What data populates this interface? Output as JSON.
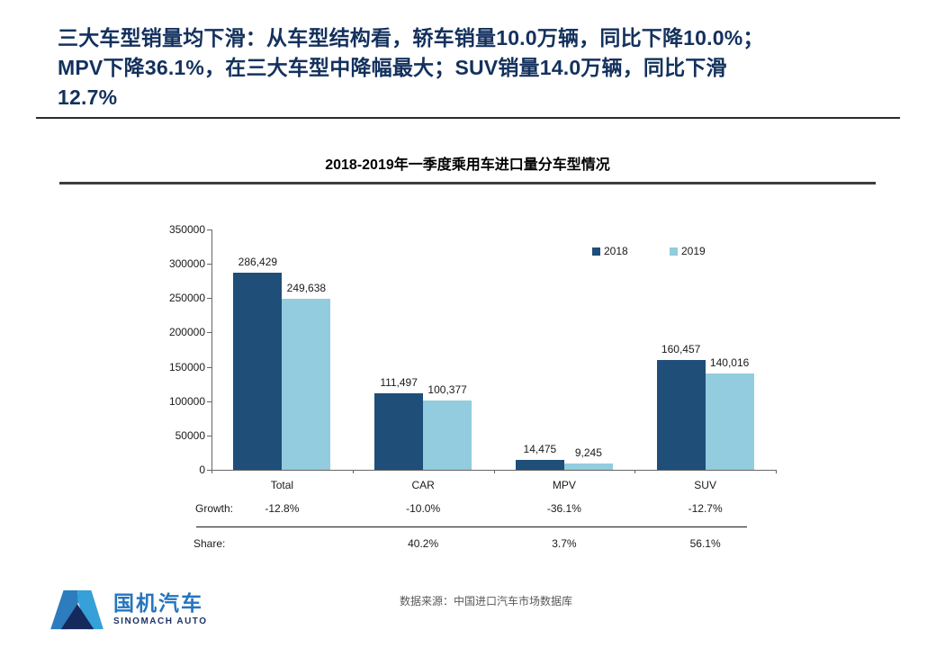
{
  "page": {
    "title_lines": [
      "三大车型销量均下滑：从车型结构看，轿车销量10.0万辆，同比下降10.0%；",
      "MPV下降36.1%，在三大车型中降幅最大；SUV销量14.0万辆，同比下滑",
      "12.7%"
    ],
    "source_note": "数据来源：中国进口汽车市场数据库"
  },
  "logo": {
    "name_cn": "国机汽车",
    "name_en": "SINOMACH AUTO"
  },
  "colors": {
    "series_2018": "#1F4E79",
    "series_2019": "#92CCDE",
    "title_navy": "#14315D",
    "source_gray": "#595959"
  },
  "chart_data": {
    "type": "bar",
    "title": "2018-2019年一季度乘用车进口量分车型情况",
    "categories": [
      "Total",
      "CAR",
      "MPV",
      "SUV"
    ],
    "series": [
      {
        "name": "2018",
        "color": "#1F4E79",
        "values": [
          286429,
          111497,
          14475,
          160457
        ]
      },
      {
        "name": "2019",
        "color": "#92CCDE",
        "values": [
          249638,
          100377,
          9245,
          140016
        ]
      }
    ],
    "data_labels": [
      [
        "286,429",
        "111,497",
        "14,475",
        "160,457"
      ],
      [
        "249,638",
        "100,377",
        "9,245",
        "140,016"
      ]
    ],
    "ylim": [
      0,
      350000
    ],
    "y_ticks": [
      "350000",
      "300000",
      "250000",
      "200000",
      "150000",
      "100000",
      "50000",
      "0"
    ],
    "grid": false,
    "legend_position": "top-right",
    "table_rows": [
      {
        "label": "Growth:",
        "values": [
          "-12.8%",
          "-10.0%",
          "-36.1%",
          "-12.7%"
        ]
      },
      {
        "label": "Share:",
        "values": [
          "",
          "40.2%",
          "3.7%",
          "56.1%"
        ]
      }
    ]
  }
}
